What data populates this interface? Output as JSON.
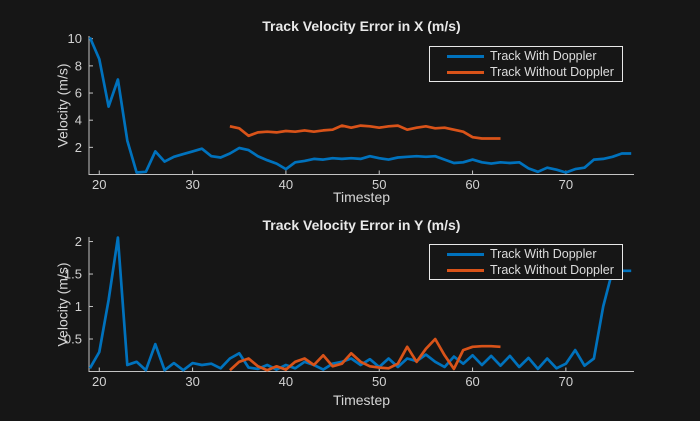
{
  "figure": {
    "background": "#161616",
    "axis_color": "#c3c3c3",
    "tick_text_color": "#d2d2d2",
    "label_text_color": "#d6d6d6",
    "title_text_color": "#e9e9e9",
    "legend_border_color": "#e8e8e8"
  },
  "chart_data": [
    {
      "type": "line",
      "title": "Track Velocity Error in X (m/s)",
      "xlabel": "Timestep",
      "ylabel": "Velocity (m/s)",
      "xlim": [
        18.9,
        77.3
      ],
      "ylim": [
        0,
        10.2
      ],
      "xticks": [
        20,
        30,
        40,
        50,
        60,
        70
      ],
      "yticks": [
        2,
        4,
        6,
        8,
        10
      ],
      "grid": false,
      "legend": {
        "position": "top-right",
        "items": [
          "Track With Doppler",
          "Track Without Doppler"
        ]
      },
      "series": [
        {
          "name": "Track With Doppler",
          "color": "#0072BD",
          "x": [
            19,
            20,
            21,
            22,
            23,
            24,
            25,
            26,
            27,
            28,
            29,
            30,
            31,
            32,
            33,
            34,
            35,
            36,
            37,
            38,
            39,
            40,
            41,
            42,
            43,
            44,
            45,
            46,
            47,
            48,
            49,
            50,
            51,
            52,
            53,
            54,
            55,
            56,
            57,
            58,
            59,
            60,
            61,
            62,
            63,
            64,
            65,
            66,
            67,
            68,
            69,
            70,
            71,
            72,
            73,
            74,
            75,
            76,
            77
          ],
          "y": [
            10.1,
            8.5,
            5.0,
            7.0,
            2.5,
            0.15,
            0.2,
            1.7,
            0.95,
            1.3,
            1.5,
            1.7,
            1.9,
            1.35,
            1.25,
            1.55,
            1.95,
            1.8,
            1.35,
            1.05,
            0.8,
            0.4,
            0.9,
            1.0,
            1.15,
            1.1,
            1.2,
            1.15,
            1.2,
            1.15,
            1.35,
            1.2,
            1.1,
            1.25,
            1.3,
            1.35,
            1.3,
            1.35,
            1.1,
            0.85,
            0.9,
            1.1,
            0.9,
            0.8,
            0.9,
            0.85,
            0.9,
            0.45,
            0.2,
            0.5,
            0.35,
            0.15,
            0.4,
            0.5,
            1.1,
            1.15,
            1.3,
            1.55,
            1.55
          ]
        },
        {
          "name": "Track Without Doppler",
          "color": "#D95319",
          "x": [
            34,
            35,
            36,
            37,
            38,
            39,
            40,
            41,
            42,
            43,
            44,
            45,
            46,
            47,
            48,
            49,
            50,
            51,
            52,
            53,
            54,
            55,
            56,
            57,
            58,
            59,
            60,
            61,
            62,
            63
          ],
          "y": [
            3.55,
            3.4,
            2.85,
            3.1,
            3.15,
            3.1,
            3.2,
            3.15,
            3.25,
            3.15,
            3.25,
            3.3,
            3.6,
            3.45,
            3.6,
            3.55,
            3.45,
            3.55,
            3.6,
            3.3,
            3.45,
            3.55,
            3.4,
            3.45,
            3.3,
            3.15,
            2.75,
            2.65,
            2.65,
            2.65
          ]
        }
      ]
    },
    {
      "type": "line",
      "title": "Track Velocity Error in Y (m/s)",
      "xlabel": "Timestep",
      "ylabel": "Velocity (m/s)",
      "xlim": [
        18.9,
        77.3
      ],
      "ylim": [
        0,
        2.07
      ],
      "xticks": [
        20,
        30,
        40,
        50,
        60,
        70
      ],
      "yticks": [
        0.5,
        1,
        1.5,
        2
      ],
      "grid": false,
      "legend": {
        "position": "top-right",
        "items": [
          "Track With Doppler",
          "Track Without Doppler"
        ]
      },
      "series": [
        {
          "name": "Track With Doppler",
          "color": "#0072BD",
          "x": [
            19,
            20,
            21,
            22,
            23,
            24,
            25,
            26,
            27,
            28,
            29,
            30,
            31,
            32,
            33,
            34,
            35,
            36,
            37,
            38,
            39,
            40,
            41,
            42,
            43,
            44,
            45,
            46,
            47,
            48,
            49,
            50,
            51,
            52,
            53,
            54,
            55,
            56,
            57,
            58,
            59,
            60,
            61,
            62,
            63,
            64,
            65,
            66,
            67,
            68,
            69,
            70,
            71,
            72,
            73,
            74,
            75,
            76,
            77
          ],
          "y": [
            0.05,
            0.3,
            1.1,
            2.06,
            0.1,
            0.15,
            0.02,
            0.42,
            0.02,
            0.13,
            0.02,
            0.13,
            0.1,
            0.12,
            0.05,
            0.2,
            0.28,
            0.06,
            0.04,
            0.1,
            0.03,
            0.1,
            0.05,
            0.15,
            0.1,
            0.03,
            0.12,
            0.15,
            0.2,
            0.1,
            0.19,
            0.07,
            0.2,
            0.07,
            0.2,
            0.16,
            0.26,
            0.15,
            0.07,
            0.23,
            0.12,
            0.25,
            0.1,
            0.24,
            0.09,
            0.24,
            0.07,
            0.21,
            0.04,
            0.2,
            0.05,
            0.12,
            0.33,
            0.09,
            0.2,
            1.0,
            1.55,
            1.55,
            1.55
          ]
        },
        {
          "name": "Track Without Doppler",
          "color": "#D95319",
          "x": [
            34,
            35,
            36,
            37,
            38,
            39,
            40,
            41,
            42,
            43,
            44,
            45,
            46,
            47,
            48,
            49,
            50,
            51,
            52,
            53,
            54,
            55,
            56,
            57,
            58,
            59,
            60,
            61,
            62,
            63
          ],
          "y": [
            0.02,
            0.15,
            0.2,
            0.08,
            0.02,
            0.08,
            0.03,
            0.15,
            0.2,
            0.1,
            0.25,
            0.08,
            0.12,
            0.28,
            0.15,
            0.08,
            0.06,
            0.05,
            0.12,
            0.38,
            0.15,
            0.35,
            0.5,
            0.25,
            0.04,
            0.33,
            0.38,
            0.39,
            0.39,
            0.38
          ]
        }
      ]
    }
  ]
}
